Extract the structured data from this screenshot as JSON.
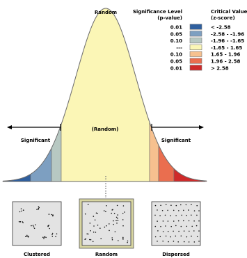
{
  "curve": {
    "center_label": "(Random)",
    "top_label": "Random",
    "left_label": "Significant",
    "right_label": "Significant"
  },
  "legend": {
    "left_header_line1": "Significance Level",
    "left_header_line2": "(p-value)",
    "right_header_line1": "Critical Value",
    "right_header_line2": "(z-score)",
    "rows": [
      {
        "p": "0.01",
        "z": "< -2.58",
        "color": "#2f5f9e"
      },
      {
        "p": "0.05",
        "z": "-2.58 - -1.96",
        "color": "#7d9fc1"
      },
      {
        "p": "0.10",
        "z": "-1.96 - -1.65",
        "color": "#b7c8c2"
      },
      {
        "p": "---",
        "z": "-1.65 - 1.65",
        "color": "#fbf6b6"
      },
      {
        "p": "0.10",
        "z": "1.65 - 1.96",
        "color": "#f7c18f"
      },
      {
        "p": "0.05",
        "z": "1.96 - 2.58",
        "color": "#ea6e4f"
      },
      {
        "p": "0.01",
        "z": "> 2.58",
        "color": "#cf2a2a"
      }
    ]
  },
  "panels": [
    {
      "label": "Clustered",
      "pattern": "clustered",
      "highlighted": false
    },
    {
      "label": "Random",
      "pattern": "random",
      "highlighted": true
    },
    {
      "label": "Dispersed",
      "pattern": "dispersed",
      "highlighted": false
    }
  ],
  "colors": {
    "curve_outline": "#6e6e6e",
    "panel_fill": "#e3e3e3",
    "panel_highlight_border": "#d8d6a2",
    "tail_left": [
      "#2f5f9e",
      "#7d9fc1",
      "#b7c8c2"
    ],
    "center": "#fbf6b6",
    "tail_right": [
      "#f7c18f",
      "#ea6e4f",
      "#cf2a2a"
    ]
  }
}
